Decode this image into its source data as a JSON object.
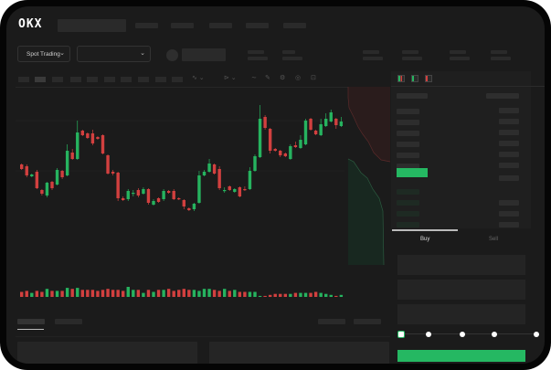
{
  "header": {
    "logo": "OKX"
  },
  "toolbar": {
    "market_selector": "Spot Trading",
    "market_chevron": "⌄",
    "pair_chevron": "⌄"
  },
  "order_form": {
    "buy_tab": "Buy",
    "sell_tab": "Sell",
    "slider_value_percent": 0
  },
  "colors": {
    "up": "#26b35f",
    "down": "#d2403f",
    "background": "#1b1b1b",
    "accent": "#25b862"
  },
  "candles": [
    [
      120,
      115,
      121,
      114
    ],
    [
      118,
      108,
      120,
      106
    ],
    [
      107,
      109,
      110,
      106
    ],
    [
      112,
      94,
      114,
      93
    ],
    [
      92,
      88,
      93,
      86
    ],
    [
      86,
      100,
      101,
      84
    ],
    [
      101,
      94,
      102,
      92
    ],
    [
      98,
      114,
      116,
      97
    ],
    [
      113,
      106,
      114,
      104
    ],
    [
      108,
      135,
      142,
      107
    ],
    [
      133,
      126,
      137,
      125
    ],
    [
      126,
      155,
      168,
      125
    ],
    [
      157,
      152,
      158,
      151
    ],
    [
      154,
      149,
      155,
      148
    ],
    [
      154,
      143,
      158,
      141
    ],
    [
      150,
      148,
      151,
      147
    ],
    [
      152,
      132,
      153,
      131
    ],
    [
      130,
      110,
      131,
      109
    ],
    [
      112,
      110,
      114,
      108
    ],
    [
      111,
      83,
      112,
      80
    ],
    [
      83,
      81,
      85,
      80
    ],
    [
      82,
      91,
      93,
      80
    ],
    [
      88,
      89,
      92,
      85
    ],
    [
      92,
      86,
      94,
      84
    ],
    [
      88,
      93,
      95,
      87
    ],
    [
      93,
      78,
      94,
      76
    ],
    [
      76,
      80,
      82,
      75
    ],
    [
      83,
      79,
      84,
      78
    ],
    [
      82,
      91,
      93,
      80
    ],
    [
      91,
      89,
      92,
      88
    ],
    [
      91,
      82,
      93,
      81
    ],
    [
      83,
      82,
      84,
      81
    ],
    [
      81,
      74,
      82,
      71
    ],
    [
      72,
      70,
      73,
      69
    ],
    [
      71,
      77,
      78,
      69
    ],
    [
      78,
      108,
      113,
      77
    ],
    [
      108,
      112,
      114,
      107
    ],
    [
      112,
      121,
      126,
      111
    ],
    [
      120,
      110,
      121,
      109
    ],
    [
      115,
      94,
      118,
      92
    ],
    [
      91,
      92,
      95,
      89
    ],
    [
      96,
      92,
      97,
      91
    ],
    [
      90,
      93,
      94,
      89
    ],
    [
      95,
      85,
      96,
      84
    ],
    [
      93,
      92,
      96,
      91
    ],
    [
      93,
      113,
      117,
      92
    ],
    [
      113,
      129,
      131,
      112
    ],
    [
      128,
      170,
      185,
      127
    ],
    [
      172,
      160,
      174,
      158
    ],
    [
      159,
      135,
      160,
      132
    ],
    [
      137,
      135,
      138,
      134
    ],
    [
      135,
      130,
      136,
      128
    ],
    [
      132,
      129,
      133,
      128
    ],
    [
      126,
      140,
      142,
      125
    ],
    [
      141,
      139,
      145,
      138
    ],
    [
      138,
      147,
      152,
      137
    ],
    [
      142,
      168,
      170,
      141
    ],
    [
      170,
      158,
      171,
      157
    ],
    [
      157,
      153,
      158,
      152
    ],
    [
      152,
      164,
      170,
      151
    ],
    [
      162,
      170,
      176,
      161
    ],
    [
      167,
      177,
      180,
      166
    ],
    [
      170,
      163,
      171,
      159
    ],
    [
      162,
      167,
      172,
      161
    ]
  ],
  "volumes": [
    5,
    6,
    4,
    6,
    5,
    8,
    6,
    6,
    6,
    9,
    8,
    9,
    7,
    7,
    7,
    6,
    7,
    8,
    7,
    7,
    6,
    10,
    7,
    7,
    4,
    7,
    5,
    7,
    7,
    8,
    6,
    7,
    8,
    7,
    7,
    6,
    8,
    8,
    7,
    6,
    8,
    6,
    7,
    5,
    5,
    5,
    5,
    1,
    1,
    2,
    3,
    3,
    3,
    3,
    4,
    4,
    4,
    4,
    5,
    4,
    3,
    2,
    1,
    2
  ]
}
